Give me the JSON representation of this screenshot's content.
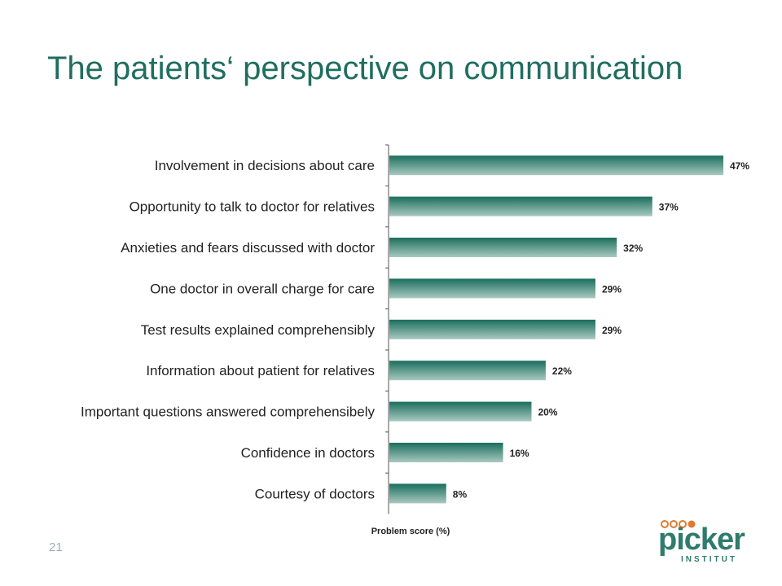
{
  "slide": {
    "title": "The patients‘ perspective on communication",
    "page_number": "21"
  },
  "logo": {
    "name": "picker-institut-logo",
    "text": "picker",
    "subtext": "INSTITUT",
    "color": "#2f7b6c",
    "dot_colors": [
      "#e07a2e",
      "#e07a2e",
      "#e07a2e",
      "#e07a2e"
    ]
  },
  "chart_data": {
    "type": "bar",
    "orientation": "horizontal",
    "categories": [
      "Involvement in decisions about care",
      "Opportunity to talk to doctor for relatives",
      "Anxieties and fears discussed with doctor",
      "One doctor in overall charge for care",
      "Test results explained comprehensibly",
      "Information about patient for relatives",
      "Important questions answered comprehensibely",
      "Confidence in doctors",
      "Courtesy of doctors"
    ],
    "values": [
      47,
      37,
      32,
      29,
      29,
      22,
      20,
      16,
      8
    ],
    "value_labels": [
      "47%",
      "37%",
      "32%",
      "29%",
      "29%",
      "22%",
      "20%",
      "16%",
      "8%"
    ],
    "xlabel": "Problem score (%)",
    "xlim": [
      0,
      50
    ],
    "grid": false,
    "bar_color_top": "#1a6e5c",
    "bar_color_bottom": "#a9c9c1"
  }
}
